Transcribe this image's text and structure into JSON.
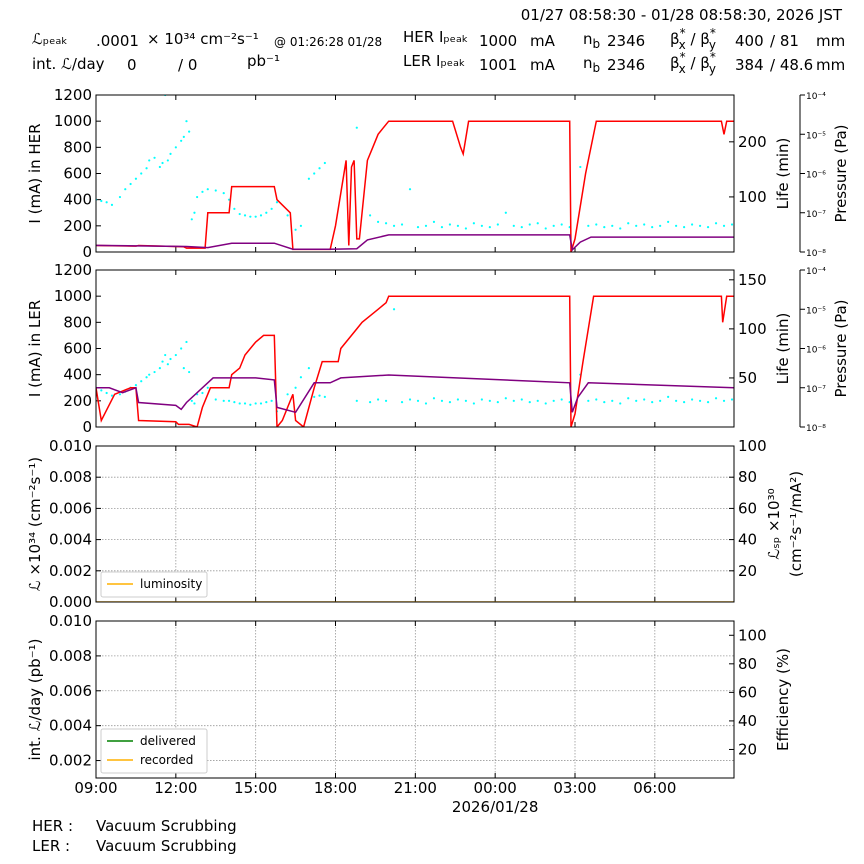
{
  "header": {
    "period": "01/27 08:58:30 - 01/28 08:58:30, 2026 JST",
    "lumi_peak_label": "ℒₚₑₐₖ",
    "lumi_peak_value": ".0001",
    "lumi_unit": "× 10³⁴ cm⁻²s⁻¹",
    "lumi_peak_time": "@ 01:26:28 01/28",
    "int_lumi_label": "int. ℒ/day",
    "int_lumi_delivered": "0",
    "int_lumi_recorded": "/ 0",
    "int_lumi_unit": "pb⁻¹",
    "her": {
      "label": "HER Iₚₑₐₖ",
      "current": "1000",
      "unit": "mA",
      "nb_label": [
        "n",
        "b"
      ],
      "nb": "2346",
      "beta_label": [
        "β",
        "*",
        "x",
        " / β",
        "*",
        "y"
      ],
      "beta_x": "400",
      "beta_y": "/ 81",
      "beta_unit": "mm"
    },
    "ler": {
      "label": "LER Iₚₑₐₖ",
      "current": "1001",
      "unit": "mA",
      "nb_label": [
        "n",
        "b"
      ],
      "nb": "2346",
      "beta_label": [
        "β",
        "*",
        "x",
        " / β",
        "*",
        "y"
      ],
      "beta_x": "384",
      "beta_y": "/ 48.6",
      "beta_unit": "mm"
    }
  },
  "footer": {
    "her_label": "HER :",
    "her_status": "Vacuum Scrubbing",
    "ler_label": "LER :",
    "ler_status": "Vacuum Scrubbing"
  },
  "chart_data": [
    {
      "type": "line",
      "ylabel": "I (mA) in HER",
      "ylim": [
        0,
        1200
      ],
      "yticks": [
        0,
        200,
        400,
        600,
        800,
        1000,
        1200
      ],
      "y2label": "Life (min)",
      "y2lim": [
        0,
        285
      ],
      "y2ticks": [
        100,
        200
      ],
      "y3label": "Pressure (Pa)",
      "y3log": true,
      "y3lim": [
        1e-08,
        0.0001
      ],
      "y3ticks": [
        {
          "value": 1e-08,
          "label": "10⁻⁸"
        },
        {
          "value": 1e-07,
          "label": "10⁻⁷"
        },
        {
          "value": 1e-06,
          "label": "10⁻⁶"
        },
        {
          "value": 1e-05,
          "label": "10⁻⁵"
        },
        {
          "value": 0.0001,
          "label": "10⁻⁴"
        }
      ],
      "xlim": [
        0,
        23.975
      ],
      "xticks": [
        0,
        3,
        6,
        9,
        12,
        15,
        18,
        21
      ],
      "grid": false,
      "series": [
        {
          "type": "scatter",
          "color": "#00ffff",
          "x": [
            0.0,
            0.2,
            0.4,
            0.6,
            0.9,
            1.1,
            1.3,
            1.5,
            1.7,
            1.9,
            2.0,
            2.2,
            2.4,
            2.5,
            2.7,
            2.8,
            3.0,
            3.2,
            3.3,
            3.5,
            2.6,
            3.4,
            3.6,
            3.7,
            3.8,
            4.0,
            4.2,
            4.5,
            4.8,
            5.0,
            5.2,
            5.4,
            5.6,
            5.8,
            6.0,
            6.2,
            6.4,
            6.6,
            6.8,
            7.2,
            7.5,
            7.7,
            8.0,
            8.2,
            8.4,
            8.6,
            9.8,
            10.3,
            10.6,
            10.9,
            11.2,
            11.5,
            11.8,
            12.1,
            12.4,
            12.7,
            13.0,
            13.3,
            13.6,
            13.9,
            14.2,
            14.5,
            14.8,
            15.1,
            15.4,
            15.7,
            16.0,
            16.3,
            16.6,
            16.9,
            17.2,
            17.5,
            17.8,
            18.2,
            18.5,
            18.8,
            19.1,
            19.4,
            19.7,
            20.0,
            20.3,
            20.6,
            20.9,
            21.2,
            21.5,
            21.8,
            22.1,
            22.4,
            22.7,
            23.0,
            23.3,
            23.6,
            23.9
          ],
          "values": [
            400,
            390,
            380,
            360,
            420,
            480,
            520,
            560,
            600,
            640,
            700,
            720,
            650,
            680,
            700,
            750,
            800,
            850,
            880,
            920,
            1200,
            1000,
            250,
            300,
            420,
            460,
            480,
            470,
            450,
            400,
            330,
            290,
            280,
            270,
            270,
            280,
            300,
            330,
            380,
            280,
            170,
            200,
            560,
            600,
            640,
            680,
            950,
            280,
            230,
            220,
            200,
            210,
            480,
            190,
            200,
            230,
            190,
            210,
            200,
            180,
            220,
            200,
            190,
            210,
            300,
            200,
            190,
            210,
            220,
            180,
            200,
            210,
            190,
            650,
            200,
            210,
            190,
            200,
            180,
            220,
            200,
            210,
            190,
            200,
            230,
            200,
            190,
            210,
            200,
            190,
            220,
            200,
            210
          ]
        },
        {
          "type": "line",
          "color": "#ff0000",
          "x": [
            0,
            1.5,
            1.6,
            3.3,
            3.4,
            4.1,
            4.2,
            5.0,
            5.1,
            6.7,
            6.8,
            7.3,
            7.4,
            8.8,
            9.0,
            9.4,
            9.5,
            9.6,
            9.7,
            9.8,
            9.9,
            10.2,
            10.4,
            10.6,
            10.8,
            11.0,
            13.4,
            13.7,
            13.8,
            14.0,
            14.2,
            17.8,
            17.85,
            18.0,
            18.4,
            18.8,
            23.5,
            23.6,
            23.7,
            23.975
          ],
          "values": [
            50,
            45,
            50,
            40,
            30,
            30,
            300,
            300,
            500,
            500,
            400,
            300,
            20,
            20,
            200,
            700,
            50,
            650,
            700,
            100,
            100,
            700,
            800,
            900,
            950,
            1000,
            1000,
            800,
            750,
            1000,
            1000,
            1000,
            0,
            100,
            600,
            1000,
            1000,
            900,
            1000,
            1000
          ]
        },
        {
          "type": "line",
          "color": "#800080",
          "axis": "y2",
          "x": [
            0,
            3.4,
            4.2,
            5.1,
            6.7,
            7.4,
            8.8,
            9.8,
            10.2,
            11.0,
            17.8,
            17.9,
            18.2,
            18.6,
            23.975
          ],
          "values": [
            12,
            10,
            8,
            16,
            16,
            5,
            5,
            6,
            22,
            31,
            31,
            4,
            18,
            27,
            27
          ]
        }
      ]
    },
    {
      "type": "line",
      "ylabel": "I (mA) in LER",
      "ylim": [
        0,
        1200
      ],
      "yticks": [
        0,
        200,
        400,
        600,
        800,
        1000,
        1200
      ],
      "y2label": "Life (min)",
      "y2lim": [
        0,
        160
      ],
      "y2ticks": [
        50,
        100,
        150
      ],
      "y3label": "Pressure (Pa)",
      "y3log": true,
      "y3lim": [
        1e-08,
        0.0001
      ],
      "y3ticks": [
        {
          "value": 1e-08,
          "label": "10⁻⁸"
        },
        {
          "value": 1e-07,
          "label": "10⁻⁷"
        },
        {
          "value": 1e-06,
          "label": "10⁻⁶"
        },
        {
          "value": 1e-05,
          "label": "10⁻⁵"
        },
        {
          "value": 0.0001,
          "label": "10⁻⁴"
        }
      ],
      "xlim": [
        0,
        23.975
      ],
      "xticks": [
        0,
        3,
        6,
        9,
        12,
        15,
        18,
        21
      ],
      "grid": false,
      "series": [
        {
          "type": "scatter",
          "color": "#00ffff",
          "x": [
            0.0,
            0.2,
            0.4,
            0.6,
            0.9,
            1.1,
            1.3,
            1.5,
            1.7,
            1.9,
            2.0,
            2.2,
            2.4,
            2.5,
            2.7,
            2.8,
            3.0,
            3.2,
            3.3,
            3.5,
            2.6,
            3.4,
            3.6,
            3.7,
            3.8,
            4.0,
            4.2,
            4.5,
            4.8,
            5.0,
            5.2,
            5.4,
            5.6,
            5.8,
            6.0,
            6.2,
            6.4,
            6.6,
            6.8,
            7.2,
            7.5,
            7.7,
            8.0,
            8.2,
            8.4,
            8.6,
            9.8,
            10.3,
            10.6,
            10.9,
            11.2,
            11.5,
            11.8,
            12.1,
            12.4,
            12.7,
            13.0,
            13.3,
            13.6,
            13.9,
            14.2,
            14.5,
            14.8,
            15.1,
            15.4,
            15.7,
            16.0,
            16.3,
            16.6,
            16.9,
            17.2,
            17.5,
            17.8,
            18.2,
            18.5,
            18.8,
            19.1,
            19.4,
            19.7,
            20.0,
            20.3,
            20.6,
            20.9,
            21.2,
            21.5,
            21.8,
            22.1,
            22.4,
            22.7,
            23.0,
            23.3,
            23.6,
            23.9
          ],
          "values": [
            300,
            280,
            260,
            240,
            250,
            270,
            300,
            320,
            350,
            380,
            400,
            420,
            450,
            500,
            480,
            520,
            550,
            600,
            450,
            420,
            550,
            650,
            200,
            180,
            250,
            260,
            300,
            210,
            200,
            200,
            190,
            180,
            180,
            170,
            180,
            180,
            190,
            200,
            120,
            250,
            300,
            380,
            450,
            230,
            240,
            230,
            200,
            190,
            210,
            200,
            900,
            190,
            210,
            200,
            180,
            220,
            200,
            190,
            210,
            200,
            180,
            210,
            200,
            190,
            220,
            200,
            210,
            190,
            200,
            180,
            200,
            210,
            190,
            400,
            200,
            210,
            190,
            200,
            180,
            220,
            200,
            210,
            190,
            200,
            230,
            200,
            190,
            210,
            200,
            190,
            220,
            200,
            210
          ]
        },
        {
          "type": "line",
          "color": "#ff0000",
          "x": [
            0,
            0.2,
            0.7,
            1.3,
            1.5,
            1.6,
            3.0,
            3.1,
            3.5,
            3.8,
            4.0,
            4.3,
            5.0,
            5.1,
            5.4,
            5.6,
            6.0,
            6.3,
            6.7,
            6.8,
            7.0,
            7.2,
            7.4,
            7.5,
            7.8,
            8.2,
            8.5,
            9.1,
            9.2,
            9.6,
            9.8,
            10.0,
            10.3,
            10.6,
            10.9,
            11.0,
            17.8,
            17.85,
            18.0,
            18.3,
            18.7,
            23.5,
            23.55,
            23.7,
            23.975
          ],
          "values": [
            300,
            50,
            250,
            300,
            300,
            50,
            40,
            20,
            20,
            0,
            150,
            300,
            300,
            400,
            450,
            550,
            650,
            700,
            700,
            0,
            50,
            150,
            250,
            50,
            0,
            300,
            500,
            500,
            600,
            700,
            750,
            800,
            850,
            900,
            950,
            1000,
            1000,
            0,
            100,
            500,
            1000,
            1000,
            800,
            1000,
            1000
          ]
        },
        {
          "type": "line",
          "color": "#800080",
          "axis": "y2",
          "x": [
            0,
            0.5,
            1.0,
            1.5,
            1.6,
            3.0,
            3.2,
            3.4,
            4.4,
            6.0,
            6.7,
            6.8,
            7.5,
            8.2,
            8.8,
            9.2,
            11.0,
            17.8,
            17.9,
            18.1,
            18.5,
            23.975
          ],
          "values": [
            40,
            40,
            35,
            40,
            25,
            22,
            18,
            25,
            50,
            50,
            48,
            20,
            15,
            45,
            45,
            50,
            53,
            45,
            15,
            30,
            45,
            40
          ]
        }
      ]
    },
    {
      "type": "line",
      "ylabel": "ℒ ×10³⁴ (cm⁻²s⁻¹)",
      "ylim": [
        0,
        0.01
      ],
      "yticks": [
        {
          "value": 0,
          "label": "0.000"
        },
        {
          "value": 0.002,
          "label": "0.002"
        },
        {
          "value": 0.004,
          "label": "0.004"
        },
        {
          "value": 0.006,
          "label": "0.006"
        },
        {
          "value": 0.008,
          "label": "0.008"
        },
        {
          "value": 0.01,
          "label": "0.010"
        }
      ],
      "y2label": [
        "ℒₛₚ ×10³⁰",
        "(cm⁻²s⁻¹/mA²)"
      ],
      "y2lim": [
        0,
        100
      ],
      "y2ticks": [
        20,
        40,
        60,
        80,
        100
      ],
      "xlim": [
        0,
        23.975
      ],
      "xticks": [
        0,
        3,
        6,
        9,
        12,
        15,
        18,
        21
      ],
      "grid": true,
      "legend": "lower left",
      "series": [
        {
          "name": "luminosity",
          "type": "line",
          "color": "#ffb000",
          "x": [
            0,
            23.975
          ],
          "values": [
            0,
            0
          ]
        }
      ]
    },
    {
      "type": "line",
      "ylabel": "int. ℒ/day (pb⁻¹)",
      "ylim": [
        0.001,
        0.01
      ],
      "yticks": [
        {
          "value": 0.002,
          "label": "0.002"
        },
        {
          "value": 0.004,
          "label": "0.004"
        },
        {
          "value": 0.006,
          "label": "0.006"
        },
        {
          "value": 0.008,
          "label": "0.008"
        },
        {
          "value": 0.01,
          "label": "0.010"
        }
      ],
      "y2label": "Efficiency (%)",
      "y2lim": [
        0,
        110
      ],
      "y2ticks": [
        20,
        40,
        60,
        80,
        100
      ],
      "xlim": [
        0,
        23.975
      ],
      "xticks": [
        {
          "value": 0,
          "label": "09:00"
        },
        {
          "value": 3,
          "label": "12:00"
        },
        {
          "value": 6,
          "label": "15:00"
        },
        {
          "value": 9,
          "label": "18:00"
        },
        {
          "value": 12,
          "label": "21:00"
        },
        {
          "value": 15,
          "label": "00:00"
        },
        {
          "value": 18,
          "label": "03:00"
        },
        {
          "value": 21,
          "label": "06:00"
        }
      ],
      "x_date_tick": {
        "value": 15,
        "label": "2026/01/28"
      },
      "grid": true,
      "legend": "lower left",
      "series": [
        {
          "name": "delivered",
          "type": "line",
          "color": "#008000",
          "x": [
            0,
            23.975
          ],
          "values": [
            0,
            0
          ]
        },
        {
          "name": "recorded",
          "type": "line",
          "color": "#ffb000",
          "x": [
            0,
            23.975
          ],
          "values": [
            0,
            0
          ]
        }
      ]
    }
  ]
}
